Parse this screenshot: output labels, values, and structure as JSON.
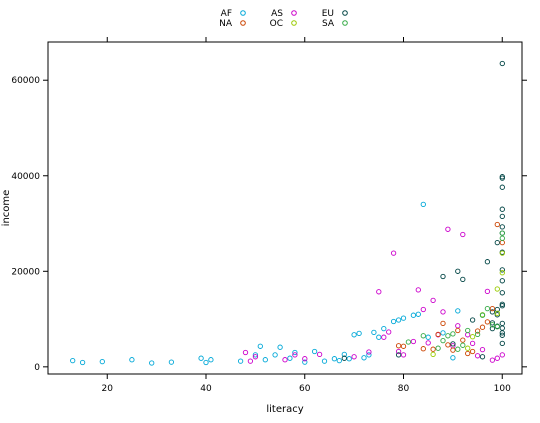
{
  "chart_data": {
    "type": "scatter",
    "xlabel": "literacy",
    "ylabel": "income",
    "xlim": [
      8,
      104
    ],
    "ylim": [
      -1500,
      68000
    ],
    "x_ticks": [
      20,
      40,
      60,
      80,
      100
    ],
    "y_ticks": [
      0,
      20000,
      40000,
      60000
    ],
    "y_tick_labels": [
      "0",
      "20000",
      "40000",
      "60000"
    ],
    "legend_position": "top",
    "grid": false,
    "series": [
      {
        "name": "AF",
        "color": "#00a8d8",
        "points": [
          [
            13,
            1300
          ],
          [
            15,
            900
          ],
          [
            19,
            1100
          ],
          [
            25,
            1500
          ],
          [
            29,
            800
          ],
          [
            33,
            1000
          ],
          [
            39,
            1800
          ],
          [
            40,
            900
          ],
          [
            41,
            1500
          ],
          [
            47,
            1200
          ],
          [
            50,
            2500
          ],
          [
            51,
            4300
          ],
          [
            52,
            1500
          ],
          [
            54,
            2500
          ],
          [
            55,
            4100
          ],
          [
            57,
            1800
          ],
          [
            58,
            3000
          ],
          [
            60,
            1000
          ],
          [
            62,
            3200
          ],
          [
            64,
            1200
          ],
          [
            66,
            1700
          ],
          [
            67,
            1300
          ],
          [
            68,
            2600
          ],
          [
            69,
            1700
          ],
          [
            70,
            6700
          ],
          [
            71,
            7000
          ],
          [
            72,
            1900
          ],
          [
            73,
            2500
          ],
          [
            74,
            7200
          ],
          [
            75,
            6200
          ],
          [
            76,
            8000
          ],
          [
            78,
            9500
          ],
          [
            79,
            9800
          ],
          [
            80,
            10200
          ],
          [
            82,
            10800
          ],
          [
            83,
            11000
          ],
          [
            84,
            34000
          ],
          [
            85,
            6200
          ],
          [
            88,
            7100
          ],
          [
            90,
            1900
          ],
          [
            91,
            11700
          ]
        ]
      },
      {
        "name": "AS",
        "color": "#cc00cc",
        "points": [
          [
            48,
            3000
          ],
          [
            49,
            1200
          ],
          [
            50,
            2100
          ],
          [
            56,
            1500
          ],
          [
            58,
            2500
          ],
          [
            60,
            1700
          ],
          [
            63,
            2600
          ],
          [
            70,
            2100
          ],
          [
            73,
            3100
          ],
          [
            75,
            15700
          ],
          [
            76,
            6200
          ],
          [
            77,
            7300
          ],
          [
            78,
            23800
          ],
          [
            79,
            3200
          ],
          [
            80,
            2500
          ],
          [
            82,
            5300
          ],
          [
            83,
            16100
          ],
          [
            84,
            12000
          ],
          [
            85,
            5000
          ],
          [
            86,
            13900
          ],
          [
            87,
            6700
          ],
          [
            88,
            11500
          ],
          [
            89,
            28800
          ],
          [
            90,
            4400
          ],
          [
            91,
            8600
          ],
          [
            92,
            27700
          ],
          [
            93,
            6700
          ],
          [
            94,
            4900
          ],
          [
            95,
            2300
          ],
          [
            96,
            3600
          ],
          [
            97,
            15800
          ],
          [
            98,
            1400
          ],
          [
            99,
            1800
          ],
          [
            100,
            2500
          ]
        ]
      },
      {
        "name": "EU",
        "color": "#004444",
        "points": [
          [
            68,
            1800
          ],
          [
            79,
            2500
          ],
          [
            88,
            18900
          ],
          [
            90,
            4800
          ],
          [
            91,
            20000
          ],
          [
            92,
            18300
          ],
          [
            94,
            9800
          ],
          [
            96,
            2100
          ],
          [
            97,
            22000
          ],
          [
            98,
            8000
          ],
          [
            98,
            11500
          ],
          [
            99,
            26000
          ],
          [
            99,
            12000
          ],
          [
            99,
            8500
          ],
          [
            100,
            63500
          ],
          [
            100,
            39800
          ],
          [
            100,
            39500
          ],
          [
            100,
            37600
          ],
          [
            100,
            33000
          ],
          [
            100,
            31500
          ],
          [
            100,
            29300
          ],
          [
            100,
            28000
          ],
          [
            100,
            24000
          ],
          [
            100,
            20300
          ],
          [
            100,
            18000
          ],
          [
            100,
            15500
          ],
          [
            100,
            13100
          ],
          [
            100,
            12800
          ],
          [
            100,
            9100
          ],
          [
            100,
            8100
          ],
          [
            100,
            7100
          ],
          [
            100,
            6600
          ],
          [
            100,
            4900
          ],
          [
            99,
            10900
          ],
          [
            98,
            9200
          ]
        ]
      },
      {
        "name": "NA",
        "color": "#cc4400",
        "points": [
          [
            79,
            4400
          ],
          [
            80,
            4300
          ],
          [
            84,
            3800
          ],
          [
            86,
            3700
          ],
          [
            87,
            6800
          ],
          [
            88,
            9100
          ],
          [
            89,
            4600
          ],
          [
            90,
            3500
          ],
          [
            91,
            7600
          ],
          [
            92,
            5600
          ],
          [
            93,
            2800
          ],
          [
            94,
            3200
          ],
          [
            95,
            7500
          ],
          [
            96,
            8300
          ],
          [
            97,
            9400
          ],
          [
            98,
            12200
          ],
          [
            99,
            29800
          ],
          [
            100,
            26000
          ]
        ]
      },
      {
        "name": "OC",
        "color": "#99cc00",
        "points": [
          [
            86,
            2600
          ],
          [
            93,
            3900
          ],
          [
            94,
            6300
          ],
          [
            96,
            10900
          ],
          [
            99,
            16300
          ],
          [
            100,
            23800
          ],
          [
            100,
            19700
          ],
          [
            99,
            11200
          ]
        ]
      },
      {
        "name": "SA",
        "color": "#33aa44",
        "points": [
          [
            81,
            5200
          ],
          [
            84,
            6500
          ],
          [
            87,
            3900
          ],
          [
            88,
            5500
          ],
          [
            89,
            6500
          ],
          [
            90,
            6900
          ],
          [
            91,
            3700
          ],
          [
            92,
            4500
          ],
          [
            93,
            7600
          ],
          [
            95,
            6800
          ],
          [
            96,
            10800
          ],
          [
            97,
            12200
          ],
          [
            98,
            8800
          ],
          [
            99,
            8400
          ],
          [
            100,
            28000
          ],
          [
            100,
            26900
          ]
        ]
      }
    ]
  }
}
